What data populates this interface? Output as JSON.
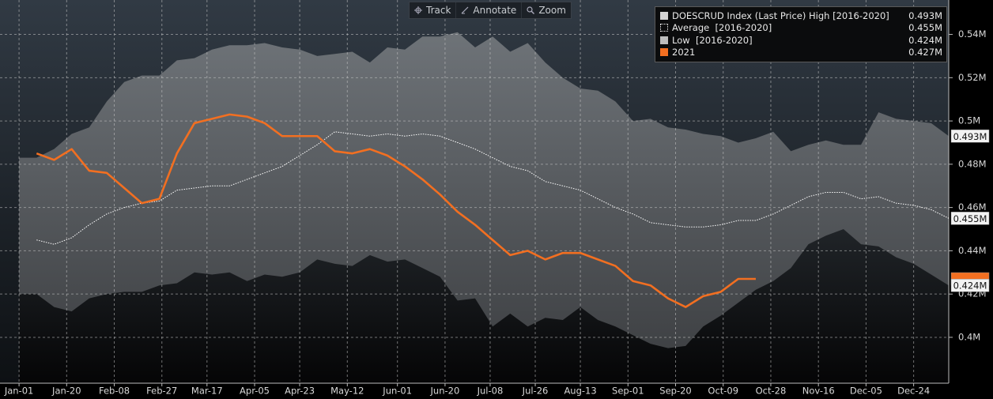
{
  "toolbar": [
    "Track",
    "Annotate",
    "Zoom"
  ],
  "chart_data": {
    "type": "line",
    "x": [
      0,
      7,
      14,
      21,
      28,
      35,
      42,
      49,
      56,
      63,
      70,
      77,
      84,
      91,
      98,
      105,
      112,
      119,
      126,
      133,
      140,
      147,
      154,
      161,
      168,
      175,
      182,
      189,
      196,
      203,
      210,
      217,
      224,
      231,
      238,
      245,
      252,
      259,
      266,
      273,
      280,
      287,
      294,
      301,
      308,
      315,
      322,
      329,
      336,
      343,
      350,
      357,
      364,
      371
    ],
    "xlim": [
      -7.6,
      371
    ],
    "xticks": [
      {
        "value": 0,
        "label": "Jan-01"
      },
      {
        "value": 19,
        "label": "Jan-20"
      },
      {
        "value": 38,
        "label": "Feb-08"
      },
      {
        "value": 57,
        "label": "Feb-27"
      },
      {
        "value": 75,
        "label": "Mar-17"
      },
      {
        "value": 94,
        "label": "Apr-05"
      },
      {
        "value": 112,
        "label": "Apr-23"
      },
      {
        "value": 131,
        "label": "May-12"
      },
      {
        "value": 151,
        "label": "Jun-01"
      },
      {
        "value": 170,
        "label": "Jun-20"
      },
      {
        "value": 188,
        "label": "Jul-08"
      },
      {
        "value": 206,
        "label": "Jul-26"
      },
      {
        "value": 224,
        "label": "Aug-13"
      },
      {
        "value": 243,
        "label": "Sep-01"
      },
      {
        "value": 262,
        "label": "Sep-20"
      },
      {
        "value": 281,
        "label": "Oct-09"
      },
      {
        "value": 300,
        "label": "Oct-28"
      },
      {
        "value": 319,
        "label": "Nov-16"
      },
      {
        "value": 338,
        "label": "Dec-05"
      },
      {
        "value": 357,
        "label": "Dec-24"
      }
    ],
    "ylim": [
      0.3788,
      0.5559
    ],
    "yticks": [
      {
        "value": 0.4,
        "label": "0.4M"
      },
      {
        "value": 0.42,
        "label": "0.42M"
      },
      {
        "value": 0.44,
        "label": "0.44M"
      },
      {
        "value": 0.46,
        "label": "0.46M"
      },
      {
        "value": 0.48,
        "label": "0.48M"
      },
      {
        "value": 0.5,
        "label": "0.5M"
      },
      {
        "value": 0.52,
        "label": "0.52M"
      },
      {
        "value": 0.54,
        "label": "0.54M"
      }
    ],
    "grid": true,
    "legend": "top-right",
    "series": [
      {
        "name": "DOESCRUD Index (Last Price) High [2016-2020]",
        "style": "band-high",
        "color": "#d4d4d4",
        "values": [
          0.483,
          0.483,
          0.487,
          0.494,
          0.497,
          0.509,
          0.518,
          0.521,
          0.521,
          0.528,
          0.529,
          0.533,
          0.535,
          0.535,
          0.536,
          0.534,
          0.533,
          0.53,
          0.531,
          0.532,
          0.527,
          0.534,
          0.533,
          0.539,
          0.539,
          0.541,
          0.534,
          0.539,
          0.532,
          0.536,
          0.527,
          0.52,
          0.515,
          0.514,
          0.509,
          0.5,
          0.501,
          0.497,
          0.496,
          0.494,
          0.493,
          0.49,
          0.492,
          0.495,
          0.486,
          0.489,
          0.491,
          0.489,
          0.489,
          0.504,
          0.501,
          0.5,
          0.499,
          0.493
        ],
        "value_labels": [
          null,
          null,
          null,
          null,
          null,
          null,
          null,
          null,
          null,
          null,
          null,
          null,
          null,
          null,
          null,
          null,
          null,
          null,
          null,
          null,
          null,
          null,
          null,
          null,
          null,
          null,
          null,
          null,
          null,
          null,
          null,
          null,
          null,
          null,
          null,
          null,
          null,
          null,
          null,
          null,
          null,
          null,
          null,
          null,
          null,
          null,
          null,
          null,
          null,
          null,
          null,
          null,
          null,
          "0.493M"
        ]
      },
      {
        "name": "Average  [2016-2020]",
        "style": "dotted",
        "color": "#ffffff",
        "values": [
          null,
          0.445,
          0.443,
          0.446,
          0.452,
          0.457,
          0.46,
          0.462,
          0.463,
          0.468,
          0.469,
          0.47,
          0.47,
          0.473,
          0.476,
          0.479,
          0.484,
          0.489,
          0.495,
          0.494,
          0.493,
          0.494,
          0.493,
          0.494,
          0.493,
          0.49,
          0.487,
          0.483,
          0.479,
          0.477,
          0.472,
          0.47,
          0.468,
          0.464,
          0.46,
          0.457,
          0.453,
          0.452,
          0.451,
          0.451,
          0.452,
          0.454,
          0.454,
          0.457,
          0.461,
          0.465,
          0.467,
          0.467,
          0.464,
          0.465,
          0.462,
          0.461,
          0.459,
          0.455
        ],
        "value_labels": [
          null,
          null,
          null,
          null,
          null,
          null,
          null,
          null,
          null,
          null,
          null,
          null,
          null,
          null,
          null,
          null,
          null,
          null,
          null,
          null,
          null,
          null,
          null,
          null,
          null,
          null,
          null,
          null,
          null,
          null,
          null,
          null,
          null,
          null,
          null,
          null,
          null,
          null,
          null,
          null,
          null,
          null,
          null,
          null,
          null,
          null,
          null,
          null,
          null,
          null,
          null,
          null,
          null,
          "0.455M"
        ]
      },
      {
        "name": "Low  [2016-2020]",
        "style": "band-low",
        "color": "#bdbdbd",
        "values": [
          0.42,
          0.42,
          0.414,
          0.412,
          0.418,
          0.42,
          0.421,
          0.421,
          0.424,
          0.425,
          0.43,
          0.429,
          0.43,
          0.426,
          0.429,
          0.428,
          0.43,
          0.436,
          0.434,
          0.433,
          0.438,
          0.435,
          0.436,
          0.432,
          0.428,
          0.417,
          0.418,
          0.405,
          0.411,
          0.405,
          0.409,
          0.408,
          0.414,
          0.408,
          0.405,
          0.401,
          0.397,
          0.395,
          0.396,
          0.405,
          0.41,
          0.416,
          0.422,
          0.426,
          0.432,
          0.443,
          0.447,
          0.45,
          0.443,
          0.442,
          0.437,
          0.434,
          0.429,
          0.424
        ],
        "value_labels": [
          null,
          null,
          null,
          null,
          null,
          null,
          null,
          null,
          null,
          null,
          null,
          null,
          null,
          null,
          null,
          null,
          null,
          null,
          null,
          null,
          null,
          null,
          null,
          null,
          null,
          null,
          null,
          null,
          null,
          null,
          null,
          null,
          null,
          null,
          null,
          null,
          null,
          null,
          null,
          null,
          null,
          null,
          null,
          null,
          null,
          null,
          null,
          null,
          null,
          null,
          null,
          null,
          null,
          "0.424M"
        ]
      },
      {
        "name": "2021",
        "style": "line",
        "color": "#f26f21",
        "values": [
          null,
          0.485,
          0.482,
          0.487,
          0.477,
          0.476,
          0.469,
          0.462,
          0.464,
          0.485,
          0.499,
          0.501,
          0.503,
          0.502,
          0.499,
          0.493,
          0.493,
          0.493,
          0.486,
          0.485,
          0.487,
          0.484,
          0.479,
          0.473,
          0.466,
          0.458,
          0.452,
          0.445,
          0.438,
          0.44,
          0.436,
          0.439,
          0.439,
          0.436,
          0.433,
          0.426,
          0.424,
          0.418,
          0.414,
          0.419,
          0.421,
          0.427,
          0.427,
          null,
          null,
          null,
          null,
          null,
          null,
          null,
          null,
          null,
          null,
          null
        ],
        "value_labels": [
          null,
          null,
          null,
          null,
          null,
          null,
          null,
          null,
          null,
          null,
          null,
          null,
          null,
          null,
          null,
          null,
          null,
          null,
          null,
          null,
          null,
          null,
          null,
          null,
          null,
          null,
          null,
          null,
          null,
          null,
          null,
          null,
          null,
          null,
          null,
          null,
          null,
          null,
          null,
          null,
          null,
          null,
          "0.427M",
          null,
          null,
          null,
          null,
          null,
          null,
          null,
          null,
          null,
          null,
          null
        ]
      }
    ]
  }
}
